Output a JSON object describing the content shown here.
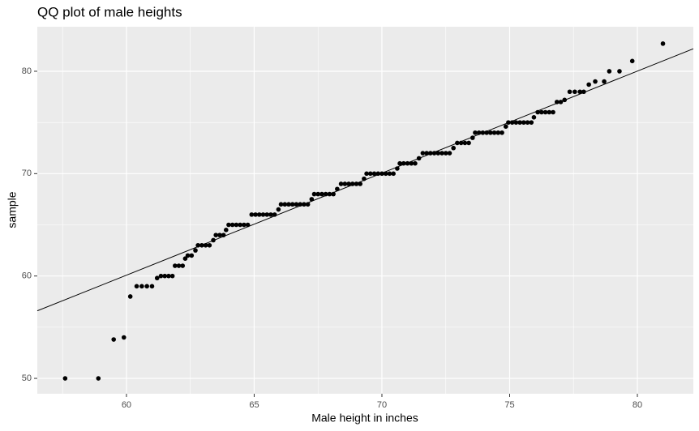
{
  "chart_data": {
    "type": "scatter",
    "title": "QQ plot of male heights",
    "x_label": "Male height in inches",
    "y_label": "sample",
    "color": "#000000",
    "grid": true,
    "xlim": [
      56.51,
      82.19
    ],
    "ylim": [
      48.5,
      84.35
    ],
    "xticks": [
      60,
      65,
      70,
      75,
      80
    ],
    "yticks": [
      50,
      60,
      70,
      80
    ],
    "line": {
      "x": [
        56.51,
        82.19
      ],
      "y": [
        56.6,
        82.2
      ]
    },
    "x": [
      57.6,
      58.9,
      59.5,
      59.9,
      60.15,
      60.4,
      60.6,
      60.8,
      61.0,
      61.2,
      61.35,
      61.5,
      61.65,
      61.8,
      61.9,
      62.05,
      62.2,
      62.3,
      62.4,
      62.55,
      62.7,
      62.8,
      62.95,
      63.1,
      63.25,
      63.4,
      63.5,
      63.65,
      63.8,
      63.9,
      64.0,
      64.15,
      64.3,
      64.45,
      64.6,
      64.75,
      64.9,
      65.05,
      65.2,
      65.35,
      65.5,
      65.65,
      65.8,
      65.95,
      66.05,
      66.2,
      66.35,
      66.5,
      66.65,
      66.8,
      66.95,
      67.1,
      67.25,
      67.35,
      67.5,
      67.65,
      67.8,
      67.95,
      68.1,
      68.25,
      68.4,
      68.55,
      68.7,
      68.85,
      69.0,
      69.15,
      69.3,
      69.4,
      69.55,
      69.7,
      69.85,
      70.0,
      70.15,
      70.3,
      70.45,
      70.6,
      70.7,
      70.85,
      71.0,
      71.15,
      71.3,
      71.45,
      71.6,
      71.75,
      71.9,
      72.05,
      72.2,
      72.35,
      72.5,
      72.65,
      72.8,
      72.95,
      73.1,
      73.25,
      73.4,
      73.55,
      73.65,
      73.8,
      73.95,
      74.1,
      74.25,
      74.4,
      74.55,
      74.7,
      74.85,
      74.95,
      75.1,
      75.25,
      75.4,
      75.55,
      75.7,
      75.85,
      75.95,
      76.1,
      76.25,
      76.4,
      76.55,
      76.7,
      76.85,
      77.0,
      77.15,
      77.35,
      77.55,
      77.75,
      77.9,
      78.1,
      78.35,
      78.7,
      78.9,
      79.3,
      79.8,
      81.0
    ],
    "values": [
      50,
      50,
      53.8,
      54,
      58,
      59,
      59,
      59,
      59,
      59.8,
      60,
      60,
      60,
      60,
      61,
      61,
      61,
      61.7,
      62,
      62,
      62.5,
      63,
      63,
      63,
      63,
      63.5,
      64,
      64,
      64,
      64.5,
      65,
      65,
      65,
      65,
      65,
      65,
      66,
      66,
      66,
      66,
      66,
      66,
      66,
      66.5,
      67,
      67,
      67,
      67,
      67,
      67,
      67,
      67,
      67.5,
      68,
      68,
      68,
      68,
      68,
      68,
      68.5,
      69,
      69,
      69,
      69,
      69,
      69,
      69.5,
      70,
      70,
      70,
      70,
      70,
      70,
      70,
      70,
      70.5,
      71,
      71,
      71,
      71,
      71,
      71.5,
      72,
      72,
      72,
      72,
      72,
      72,
      72,
      72,
      72.5,
      73,
      73,
      73,
      73,
      73.5,
      74,
      74,
      74,
      74,
      74,
      74,
      74,
      74,
      74.6,
      75,
      75,
      75,
      75,
      75,
      75,
      75,
      75.5,
      76,
      76,
      76,
      76,
      76,
      77,
      77,
      77.2,
      78,
      78,
      78,
      78,
      78.7,
      79,
      79,
      80,
      80,
      81,
      82.7
    ]
  }
}
